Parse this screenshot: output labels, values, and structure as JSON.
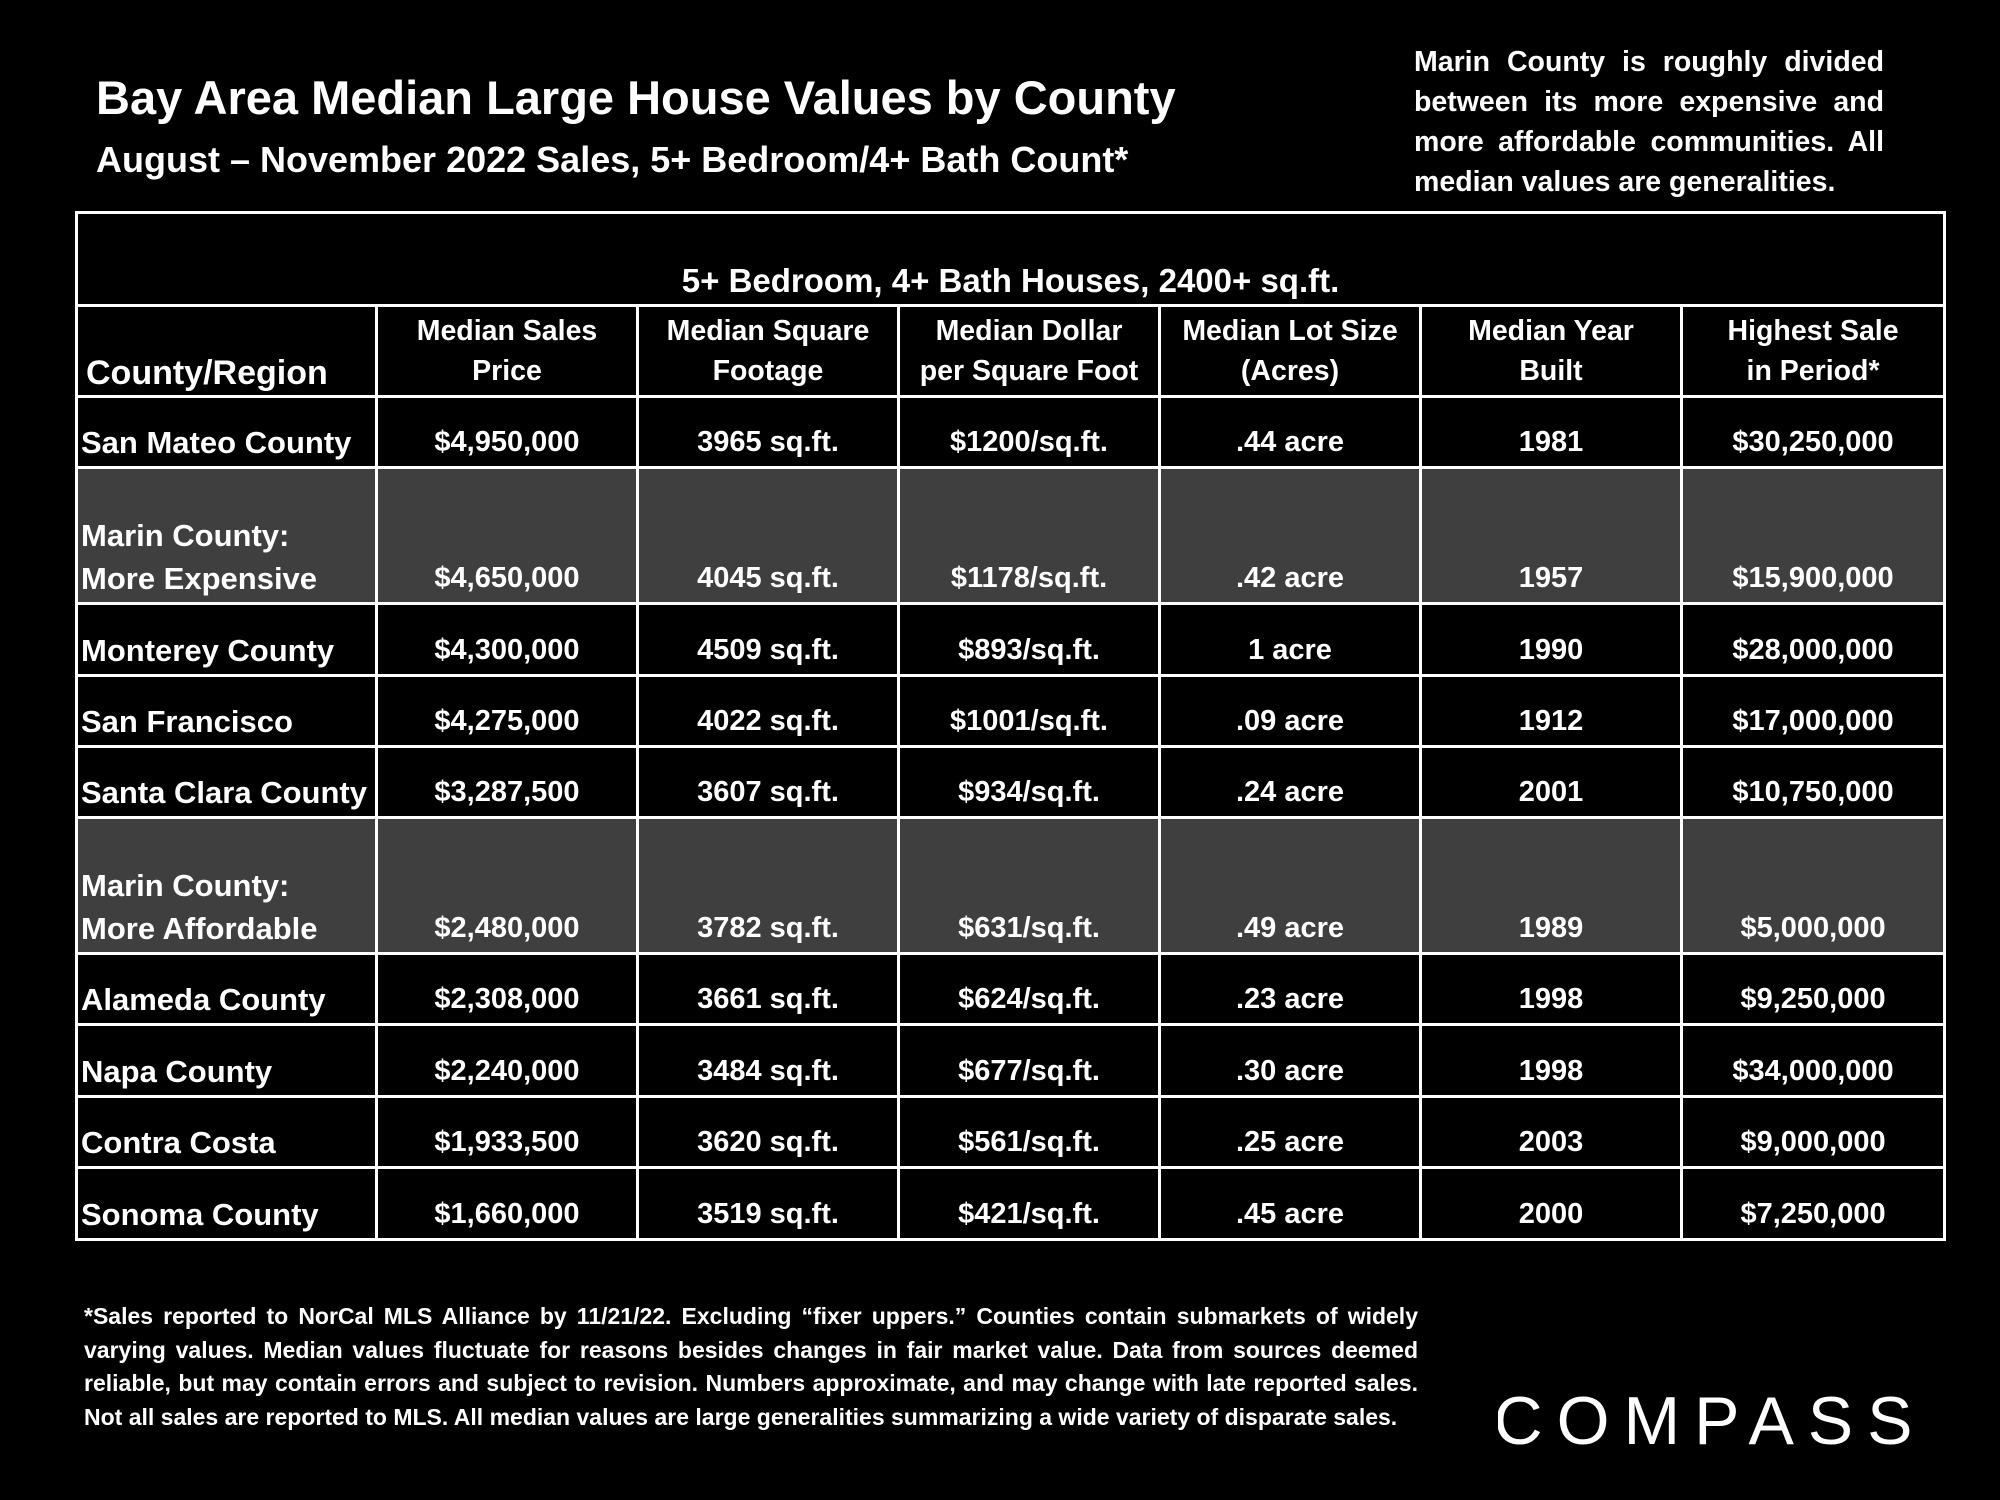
{
  "header": {
    "title": "Bay Area Median Large House Values by County",
    "subtitle": "August – November 2022 Sales, 5+ Bedroom/4+ Bath Count*"
  },
  "note": "Marin County is roughly divided between its more expensive and more affordable communities. All median values are generalities.",
  "chart_data": {
    "type": "table",
    "group_header": "5+ Bedroom, 4+ Bath Houses, 2400+ sq.ft.",
    "columns": [
      {
        "line1": "County/Region",
        "line2": ""
      },
      {
        "line1": "Median Sales",
        "line2": "Price"
      },
      {
        "line1": "Median Square",
        "line2": "Footage"
      },
      {
        "line1": "Median Dollar",
        "line2": "per Square Foot"
      },
      {
        "line1": "Median Lot Size",
        "line2": "(Acres)"
      },
      {
        "line1": "Median Year",
        "line2": "Built"
      },
      {
        "line1": "Highest Sale",
        "line2": "in Period*"
      }
    ],
    "rows": [
      {
        "region_line1": "",
        "region_line2": "San Mateo County",
        "price": "$4,950,000",
        "sqft": "3965 sq.ft.",
        "dollar_sqft": "$1200/sq.ft.",
        "lot": ".44 acre",
        "year": "1981",
        "highest": "$30,250,000",
        "shaded": false
      },
      {
        "region_line1": "Marin County:",
        "region_line2": "More Expensive",
        "price": "$4,650,000",
        "sqft": "4045 sq.ft.",
        "dollar_sqft": "$1178/sq.ft.",
        "lot": ".42 acre",
        "year": "1957",
        "highest": "$15,900,000",
        "shaded": true
      },
      {
        "region_line1": "",
        "region_line2": "Monterey County",
        "price": "$4,300,000",
        "sqft": "4509 sq.ft.",
        "dollar_sqft": "$893/sq.ft.",
        "lot": "1 acre",
        "year": "1990",
        "highest": "$28,000,000",
        "shaded": false
      },
      {
        "region_line1": "",
        "region_line2": "San Francisco",
        "price": "$4,275,000",
        "sqft": "4022 sq.ft.",
        "dollar_sqft": "$1001/sq.ft.",
        "lot": ".09 acre",
        "year": "1912",
        "highest": "$17,000,000",
        "shaded": false
      },
      {
        "region_line1": "",
        "region_line2": "Santa Clara County",
        "price": "$3,287,500",
        "sqft": "3607 sq.ft.",
        "dollar_sqft": "$934/sq.ft.",
        "lot": ".24 acre",
        "year": "2001",
        "highest": "$10,750,000",
        "shaded": false
      },
      {
        "region_line1": "Marin County:",
        "region_line2": "More Affordable",
        "price": "$2,480,000",
        "sqft": "3782 sq.ft.",
        "dollar_sqft": "$631/sq.ft.",
        "lot": ".49 acre",
        "year": "1989",
        "highest": "$5,000,000",
        "shaded": true
      },
      {
        "region_line1": "",
        "region_line2": "Alameda County",
        "price": "$2,308,000",
        "sqft": "3661 sq.ft.",
        "dollar_sqft": "$624/sq.ft.",
        "lot": ".23 acre",
        "year": "1998",
        "highest": "$9,250,000",
        "shaded": false
      },
      {
        "region_line1": "",
        "region_line2": "Napa County",
        "price": "$2,240,000",
        "sqft": "3484 sq.ft.",
        "dollar_sqft": "$677/sq.ft.",
        "lot": ".30 acre",
        "year": "1998",
        "highest": "$34,000,000",
        "shaded": false
      },
      {
        "region_line1": "",
        "region_line2": "Contra Costa",
        "price": "$1,933,500",
        "sqft": "3620 sq.ft.",
        "dollar_sqft": "$561/sq.ft.",
        "lot": ".25 acre",
        "year": "2003",
        "highest": "$9,000,000",
        "shaded": false
      },
      {
        "region_line1": "",
        "region_line2": "Sonoma County",
        "price": "$1,660,000",
        "sqft": "3519 sq.ft.",
        "dollar_sqft": "$421/sq.ft.",
        "lot": ".45 acre",
        "year": "2000",
        "highest": "$7,250,000",
        "shaded": false
      }
    ]
  },
  "footnote": "*Sales reported to NorCal MLS Alliance by 11/21/22. Excluding “fixer uppers.” Counties contain submarkets of widely varying values. Median values fluctuate for reasons besides changes in fair market value. Data from sources deemed reliable, but may contain errors and subject to revision.  Numbers approximate, and may change with late reported sales. Not all sales are reported to MLS. All median values are large generalities summarizing a wide variety of disparate sales.",
  "logo": {
    "text": "COMPASS"
  }
}
